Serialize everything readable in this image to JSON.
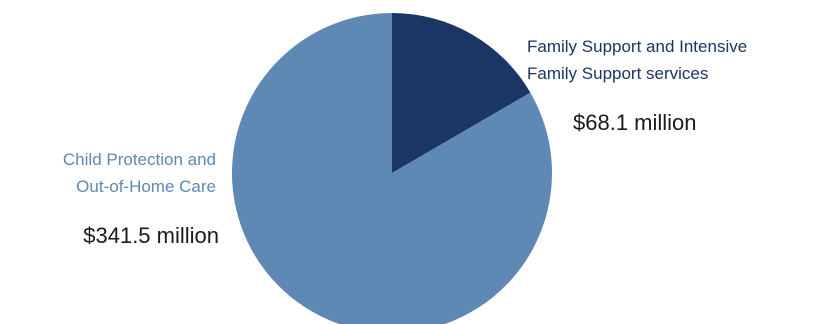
{
  "chart_data": {
    "type": "pie",
    "unit": "$ million",
    "slices": [
      {
        "label_lines": [
          "Family Support and Intensive",
          "Family Support services"
        ],
        "value": 68.1,
        "value_label": "$68.1 million",
        "color": "#1b3564",
        "label_color": "#1b3564"
      },
      {
        "label_lines": [
          "Child Protection and",
          "Out-of-Home Care"
        ],
        "value": 341.5,
        "value_label": "$341.5 million",
        "color": "#5e89b5",
        "label_color": "#5e89b5"
      }
    ]
  }
}
